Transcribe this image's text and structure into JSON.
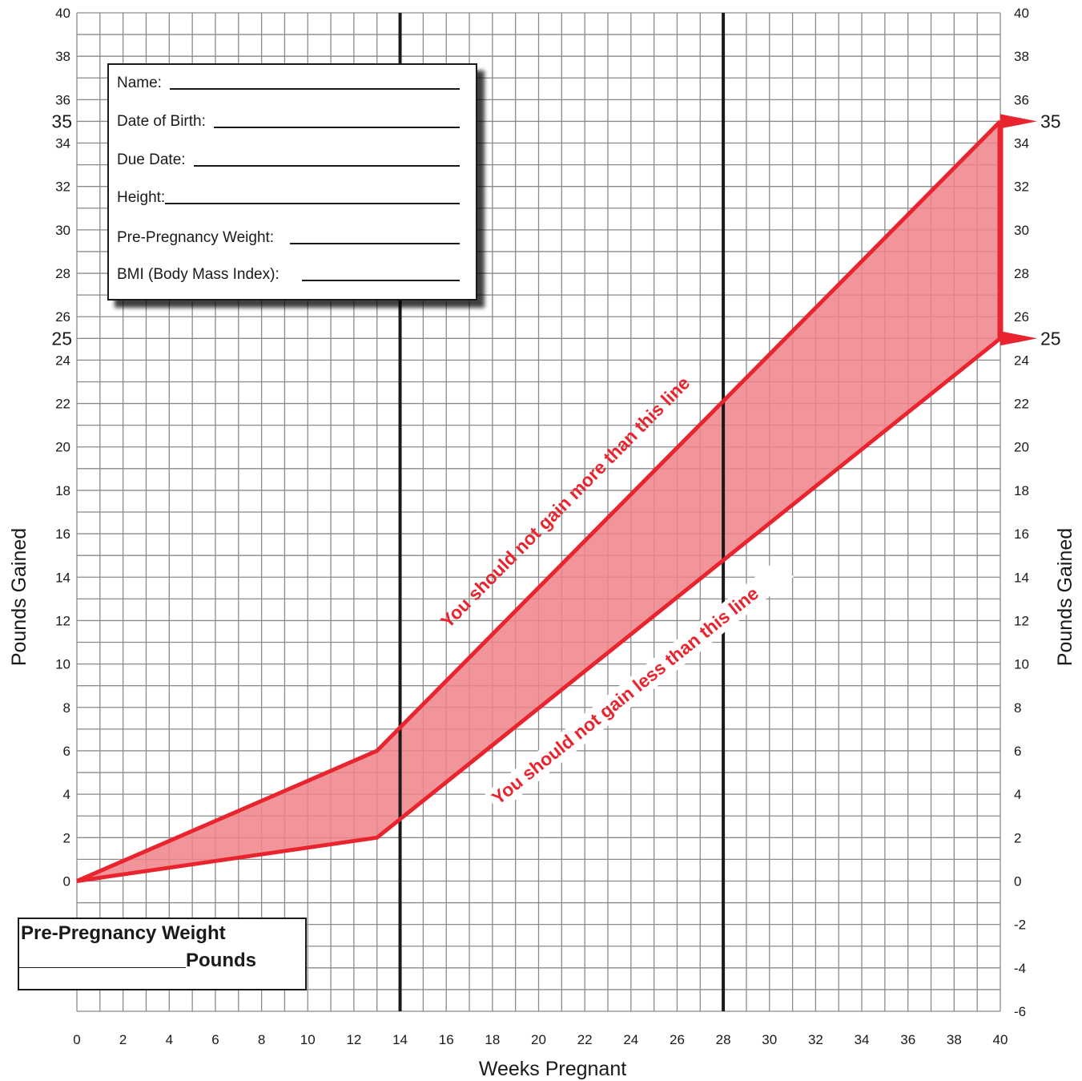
{
  "chart_data": {
    "type": "area",
    "xlabel": "Weeks Pregnant",
    "ylabel": "Pounds Gained",
    "xlim": [
      0,
      40
    ],
    "ylim": [
      -6,
      40
    ],
    "x_ticks": [
      "0",
      "2",
      "4",
      "6",
      "8",
      "10",
      "12",
      "14",
      "16",
      "18",
      "20",
      "22",
      "24",
      "26",
      "28",
      "30",
      "32",
      "34",
      "36",
      "38",
      "40"
    ],
    "y_ticks": [
      "40",
      "38",
      "36",
      "34",
      "32",
      "30",
      "28",
      "26",
      "24",
      "22",
      "20",
      "18",
      "16",
      "14",
      "12",
      "10",
      "8",
      "6",
      "4",
      "2",
      "0",
      "-2",
      "-4",
      "-6"
    ],
    "y_ticks_left": [
      "40",
      "38",
      "36",
      "34",
      "32",
      "30",
      "28",
      "26",
      "24",
      "22",
      "20",
      "18",
      "16",
      "14",
      "12",
      "10",
      "8",
      "6",
      "4",
      "2",
      "0"
    ],
    "grid": true,
    "vertical_lines_weeks": [
      14,
      28
    ],
    "series": [
      {
        "x": [
          0,
          13,
          40
        ],
        "y": [
          0,
          6,
          35
        ]
      },
      {
        "x": [
          0,
          13,
          40
        ],
        "y": [
          0,
          2,
          25
        ]
      }
    ],
    "markers": [
      {
        "y": 35,
        "label": "35"
      },
      {
        "y": 25,
        "label": "25"
      }
    ],
    "annotations": {
      "upper": "You should not gain more than this line",
      "lower": "You should not gain less than this line"
    },
    "colors": {
      "band": "#f0828a",
      "line": "#e8252f",
      "grid": "#8a8a8a",
      "text": "#1a1a1a"
    }
  },
  "form": {
    "name": "Name:",
    "dob": "Date of Birth:",
    "due": "Due Date:",
    "height": "Height:",
    "pre_weight": "Pre-Pregnancy Weight:",
    "bmi": "BMI (Body Mass Index):"
  },
  "weight_box": {
    "title": "Pre-Pregnancy Weight",
    "unit": "Pounds"
  }
}
